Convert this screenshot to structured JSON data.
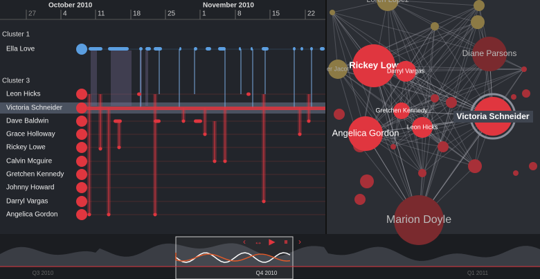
{
  "timeline": {
    "months": [
      "October 2010",
      "November 2010"
    ],
    "days": [
      "27",
      "4",
      "11",
      "18",
      "25",
      "1",
      "8",
      "15",
      "22"
    ],
    "clusters": [
      {
        "name": "Cluster 1",
        "people": [
          "Ella Love"
        ]
      },
      {
        "name": "Cluster 3",
        "people": [
          "Leon Hicks",
          "Victoria Schneider",
          "Dave Baldwin",
          "Grace Holloway",
          "Rickey Lowe",
          "Calvin Mcguire",
          "Gretchen Kennedy",
          "Johnny Howard",
          "Darryl Vargas",
          "Angelica Gordon"
        ]
      }
    ]
  },
  "network": {
    "nodes": [
      {
        "label": "Loren Lopez"
      },
      {
        "label": "er Jacot"
      },
      {
        "label": "Diane Parsons"
      },
      {
        "label": "Rickey Low"
      },
      {
        "label": "Darryl Vargas"
      },
      {
        "label": "Gretchen Kennedy"
      },
      {
        "label": "Victoria Schneider"
      },
      {
        "label": "Leon Hicks"
      },
      {
        "label": "Angelica Gordon"
      },
      {
        "label": "Marion Doyle"
      }
    ]
  },
  "navigator": {
    "periods": [
      "Q3 2010",
      "Q4 2010",
      "Q1 2011"
    ]
  }
}
